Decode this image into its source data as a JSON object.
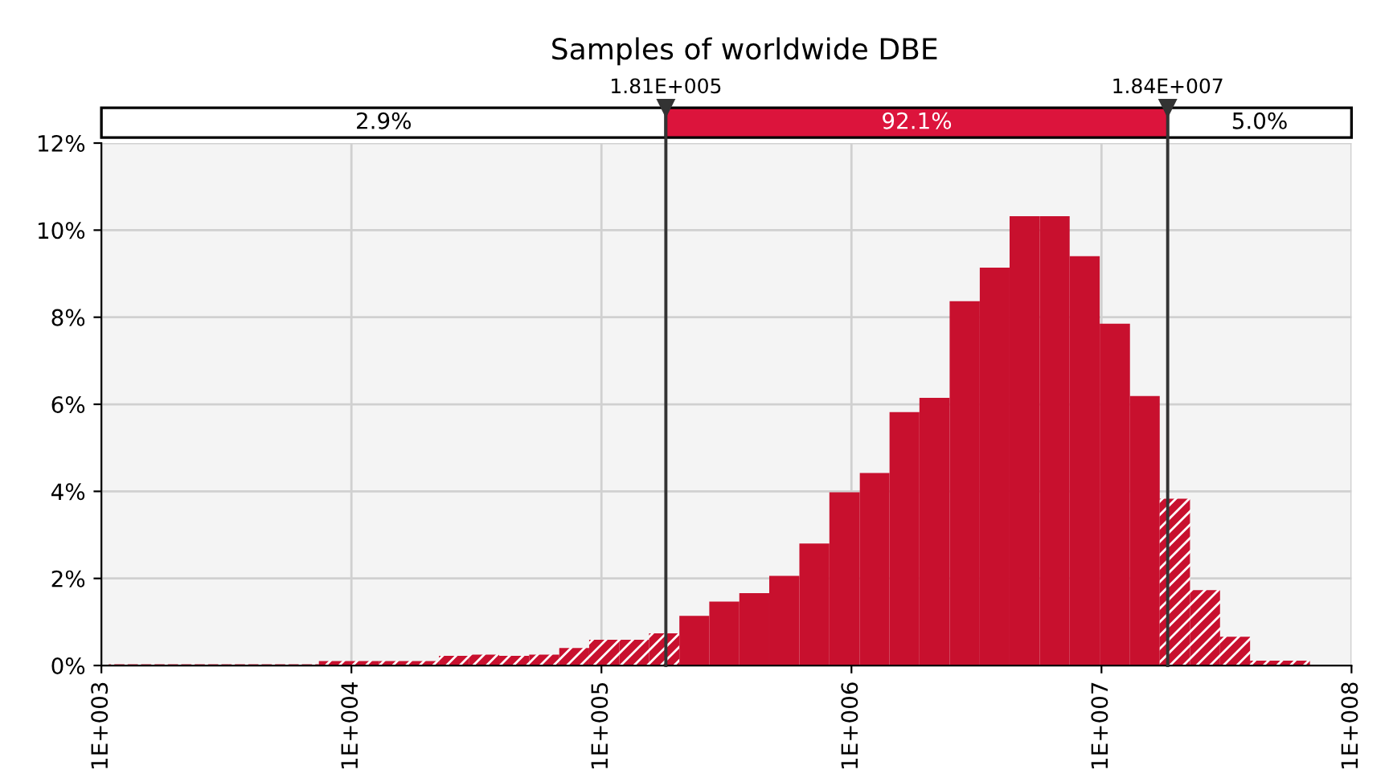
{
  "chart_data": {
    "type": "histogram",
    "title": "Samples of worldwide DBE",
    "bins": [
      1070,
      1410,
      1860,
      2450,
      3230,
      4260,
      5620,
      7410,
      9770,
      12900,
      17000,
      22400,
      29600,
      39000,
      51400,
      67800,
      89300,
      118000,
      155000,
      205000,
      270000,
      356000,
      469000,
      619000,
      816000,
      1080000,
      1420000,
      1870000,
      2470000,
      3260000,
      4290000,
      5660000,
      7460000,
      9840000,
      13000000,
      17100000,
      22600000,
      29800000,
      39300000,
      51800000,
      68200000
    ],
    "values": [
      0.03,
      0.03,
      0.03,
      0.03,
      0.03,
      0.03,
      0.03,
      0.1,
      0.1,
      0.1,
      0.1,
      0.22,
      0.25,
      0.22,
      0.25,
      0.4,
      0.59,
      0.59,
      0.74,
      1.14,
      1.47,
      1.66,
      2.06,
      2.8,
      3.98,
      4.42,
      5.82,
      6.15,
      8.37,
      9.14,
      10.32,
      10.32,
      9.4,
      7.85,
      6.19,
      3.83,
      1.73,
      0.66,
      0.11,
      0.11
    ],
    "color": "#c8102e",
    "log": "x",
    "xlim": [
      1000,
      100000000
    ],
    "xticks": [
      {
        "value": 1000,
        "label": "1E+003"
      },
      {
        "value": 10000,
        "label": "1E+004"
      },
      {
        "value": 100000,
        "label": "1E+005"
      },
      {
        "value": 1000000,
        "label": "1E+006"
      },
      {
        "value": 10000000,
        "label": "1E+007"
      },
      {
        "value": 100000000,
        "label": "1E+008"
      }
    ],
    "ylim": [
      0,
      12
    ],
    "yticks": [
      {
        "value": 0,
        "label": "0%"
      },
      {
        "value": 2,
        "label": "2%"
      },
      {
        "value": 4,
        "label": "4%"
      },
      {
        "value": 6,
        "label": "6%"
      },
      {
        "value": 8,
        "label": "8%"
      },
      {
        "value": 10,
        "label": "10%"
      },
      {
        "value": 12,
        "label": "12%"
      }
    ],
    "grid": true,
    "ref_lines": [
      {
        "axis": "x",
        "value": 181000,
        "label": "1.81E+005",
        "color": "#333333"
      },
      {
        "axis": "x",
        "value": 18400000,
        "label": "1.84E+007",
        "color": "#333333"
      }
    ],
    "annotations": [
      "2.9%",
      "92.1%",
      "5.0%"
    ]
  }
}
